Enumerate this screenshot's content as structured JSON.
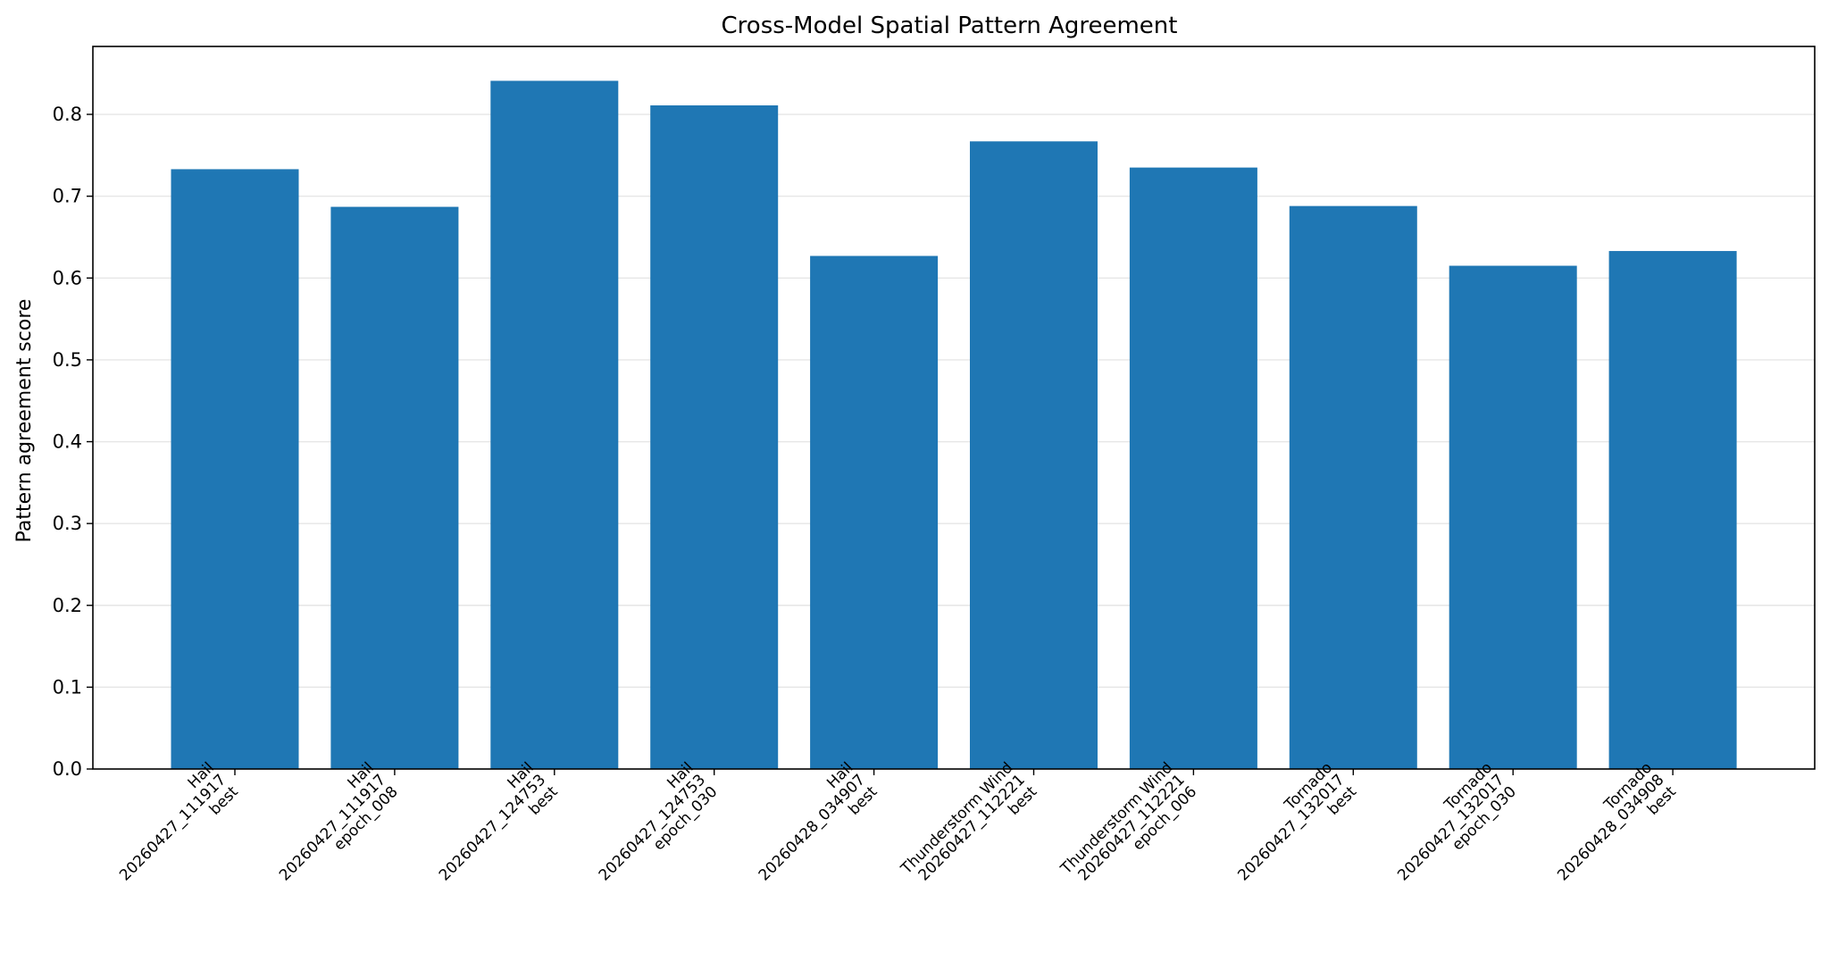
{
  "chart_data": {
    "type": "bar",
    "title": "Cross-Model Spatial Pattern Agreement",
    "xlabel": "",
    "ylabel": "Pattern agreement score",
    "ylim": [
      0,
      0.883
    ],
    "yticks": [
      "0.0",
      "0.1",
      "0.2",
      "0.3",
      "0.4",
      "0.5",
      "0.6",
      "0.7",
      "0.8"
    ],
    "grid": "y",
    "bar_color": "#1f77b4",
    "categories": [
      [
        "Hail",
        "20260427_111917",
        "best"
      ],
      [
        "Hail",
        "20260427_111917",
        "epoch_008"
      ],
      [
        "Hail",
        "20260427_124753",
        "best"
      ],
      [
        "Hail",
        "20260427_124753",
        "epoch_030"
      ],
      [
        "Hail",
        "20260428_034907",
        "best"
      ],
      [
        "Thunderstorm Wind",
        "20260427_112221",
        "best"
      ],
      [
        "Thunderstorm Wind",
        "20260427_112221",
        "epoch_006"
      ],
      [
        "Tornado",
        "20260427_132017",
        "best"
      ],
      [
        "Tornado",
        "20260427_132017",
        "epoch_030"
      ],
      [
        "Tornado",
        "20260428_034908",
        "best"
      ]
    ],
    "values": [
      0.733,
      0.687,
      0.841,
      0.811,
      0.627,
      0.767,
      0.735,
      0.688,
      0.615,
      0.633
    ]
  }
}
